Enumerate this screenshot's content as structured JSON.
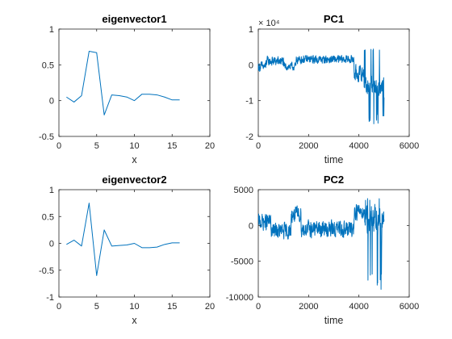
{
  "chart_data": [
    {
      "type": "line",
      "title": "eigenvector1",
      "xlabel": "x",
      "ylabel": "",
      "xlim": [
        0,
        20
      ],
      "ylim": [
        -0.5,
        1
      ],
      "xticks": [
        0,
        5,
        10,
        15,
        20
      ],
      "yticks": [
        -0.5,
        0,
        0.5,
        1
      ],
      "xtick_labels": [
        "0",
        "5",
        "10",
        "15",
        "20"
      ],
      "ytick_labels": [
        "-0.5",
        "0",
        "0.5",
        "1"
      ],
      "grid": false,
      "color": "#0072bd",
      "x": [
        1,
        2,
        3,
        4,
        5,
        6,
        7,
        8,
        9,
        10,
        11,
        12,
        13,
        14,
        15,
        16
      ],
      "y": [
        0.05,
        -0.02,
        0.07,
        0.69,
        0.67,
        -0.2,
        0.08,
        0.07,
        0.05,
        0.0,
        0.09,
        0.09,
        0.08,
        0.05,
        0.01,
        0.01
      ]
    },
    {
      "type": "line",
      "title": "PC1",
      "xlabel": "time",
      "ylabel": "",
      "xlim": [
        0,
        6000
      ],
      "ylim": [
        -2,
        1
      ],
      "scale_exponent_label": "× 10⁴",
      "xticks": [
        0,
        2000,
        4000,
        6000
      ],
      "yticks": [
        -2,
        -1,
        0,
        1
      ],
      "xtick_labels": [
        "0",
        "2000",
        "4000",
        "6000"
      ],
      "ytick_labels": [
        "-2",
        "-1",
        "0",
        "1"
      ],
      "grid": false,
      "color": "#0072bd",
      "signal": {
        "n": 5000,
        "segments": [
          {
            "x_from": 0,
            "x_to": 300,
            "baseline": -0.05,
            "spread": 0.18
          },
          {
            "x_from": 300,
            "x_to": 1000,
            "baseline": 0.1,
            "spread": 0.18
          },
          {
            "x_from": 1000,
            "x_to": 1500,
            "baseline": -0.05,
            "spread": 0.15
          },
          {
            "x_from": 1500,
            "x_to": 3800,
            "baseline": 0.15,
            "spread": 0.15
          },
          {
            "x_from": 3800,
            "x_to": 4200,
            "baseline": -0.25,
            "spread": 0.3
          },
          {
            "x_from": 4200,
            "x_to": 5000,
            "baseline": -0.6,
            "spread": 0.35
          }
        ],
        "min": -1.65,
        "max": 0.45
      }
    },
    {
      "type": "line",
      "title": "eigenvector2",
      "xlabel": "x",
      "ylabel": "",
      "xlim": [
        0,
        20
      ],
      "ylim": [
        -1,
        1
      ],
      "xticks": [
        0,
        5,
        10,
        15,
        20
      ],
      "yticks": [
        -1,
        -0.5,
        0,
        0.5,
        1
      ],
      "xtick_labels": [
        "0",
        "5",
        "10",
        "15",
        "20"
      ],
      "ytick_labels": [
        "-1",
        "-0.5",
        "0",
        "0.5",
        "1"
      ],
      "grid": false,
      "color": "#0072bd",
      "x": [
        1,
        2,
        3,
        4,
        5,
        6,
        7,
        8,
        9,
        10,
        11,
        12,
        13,
        14,
        15,
        16
      ],
      "y": [
        -0.02,
        0.06,
        -0.05,
        0.75,
        -0.6,
        0.25,
        -0.05,
        -0.04,
        -0.03,
        0.0,
        -0.08,
        -0.08,
        -0.07,
        -0.02,
        0.01,
        0.01
      ]
    },
    {
      "type": "line",
      "title": "PC2",
      "xlabel": "time",
      "ylabel": "",
      "xlim": [
        0,
        6000
      ],
      "ylim": [
        -10000,
        5000
      ],
      "xticks": [
        0,
        2000,
        4000,
        6000
      ],
      "yticks": [
        -10000,
        -5000,
        0,
        5000
      ],
      "xtick_labels": [
        "0",
        "2000",
        "4000",
        "6000"
      ],
      "ytick_labels": [
        "-10000",
        "-5000",
        "0",
        "5000"
      ],
      "grid": false,
      "color": "#0072bd",
      "signal": {
        "n": 5000,
        "segments": [
          {
            "x_from": 0,
            "x_to": 500,
            "baseline": 500,
            "spread": 1500
          },
          {
            "x_from": 500,
            "x_to": 1300,
            "baseline": -800,
            "spread": 1500
          },
          {
            "x_from": 1300,
            "x_to": 1700,
            "baseline": 1500,
            "spread": 1500
          },
          {
            "x_from": 1700,
            "x_to": 3800,
            "baseline": -500,
            "spread": 1500
          },
          {
            "x_from": 3800,
            "x_to": 4200,
            "baseline": 2000,
            "spread": 1500
          },
          {
            "x_from": 4200,
            "x_to": 5000,
            "baseline": 1000,
            "spread": 2500
          }
        ],
        "min": -9300,
        "max": 3900
      }
    }
  ]
}
